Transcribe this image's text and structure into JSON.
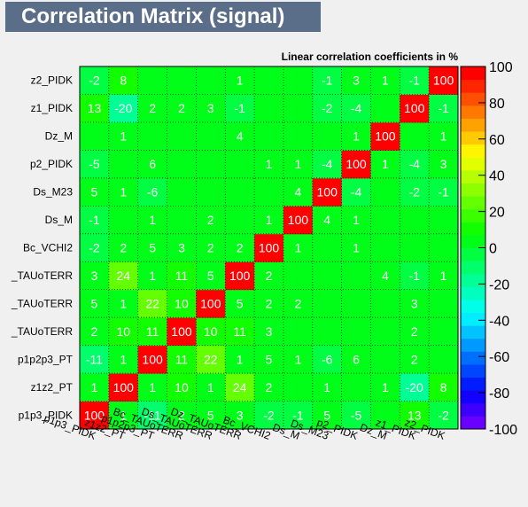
{
  "title": "Correlation Matrix (signal)",
  "chart_data": {
    "type": "heatmap",
    "title": "Correlation Matrix (signal)",
    "subtitle": "Linear correlation coefficients in %",
    "variables": [
      "p1p3_PIDK",
      "z1z2_PT",
      "p1p2p3_PT",
      "Bc_TAUoTERR",
      "Ds_TAUoTERR",
      "Dz_TAUoTERR",
      "Bc_VCHI2",
      "Ds_M",
      "Ds_M23",
      "p2_PIDK",
      "Dz_M",
      "z1_PIDK",
      "z2_PIDK"
    ],
    "y_tick_labels": [
      "p1p3_PIDK",
      "z1z2_PT",
      "p1p2p3_PT",
      "_TAUoTERR",
      "_TAUoTERR",
      "_TAUoTERR",
      "Bc_VCHI2",
      "Ds_M",
      "Ds_M23",
      "p2_PIDK",
      "Dz_M",
      "z1_PIDK",
      "z2_PIDK"
    ],
    "x_tick_labels": [
      "p1p3_PIDK",
      "z1z2_PT",
      "p1p2p3_PT",
      "Bc_TAUoTERR",
      "Ds_TAUoTERR",
      "Dz_TAUoTERR",
      "Bc_VCHI2",
      "Ds_M",
      "Ds_M23",
      "p2_PIDK",
      "Dz_M",
      "z1_PIDK",
      "z2_PIDK"
    ],
    "values": [
      [
        100,
        1,
        -11,
        2,
        5,
        3,
        -2,
        -1,
        5,
        -5,
        0,
        13,
        -2
      ],
      [
        1,
        100,
        1,
        10,
        1,
        24,
        2,
        0,
        1,
        0,
        1,
        -20,
        8
      ],
      [
        -11,
        1,
        100,
        11,
        22,
        1,
        5,
        1,
        -6,
        6,
        0,
        2,
        0
      ],
      [
        2,
        10,
        11,
        100,
        10,
        11,
        3,
        0,
        0,
        0,
        0,
        2,
        0
      ],
      [
        5,
        1,
        22,
        10,
        100,
        5,
        2,
        2,
        0,
        0,
        0,
        3,
        0
      ],
      [
        3,
        24,
        1,
        11,
        5,
        100,
        2,
        0,
        0,
        0,
        4,
        -1,
        1
      ],
      [
        -2,
        2,
        5,
        3,
        2,
        2,
        100,
        1,
        0,
        1,
        0,
        0,
        0
      ],
      [
        -1,
        0,
        1,
        0,
        2,
        0,
        1,
        100,
        4,
        1,
        0,
        0,
        0
      ],
      [
        5,
        1,
        -6,
        0,
        0,
        0,
        0,
        4,
        100,
        -4,
        0,
        -2,
        -1
      ],
      [
        -5,
        0,
        6,
        0,
        0,
        0,
        1,
        1,
        -4,
        100,
        1,
        -4,
        3
      ],
      [
        0,
        1,
        0,
        0,
        0,
        4,
        0,
        0,
        0,
        1,
        100,
        0,
        1
      ],
      [
        13,
        -20,
        2,
        2,
        3,
        -1,
        0,
        0,
        -2,
        -4,
        0,
        100,
        -1
      ],
      [
        -2,
        8,
        0,
        0,
        0,
        1,
        0,
        0,
        -1,
        3,
        1,
        -1,
        100
      ]
    ],
    "zlim": [
      -100,
      100
    ],
    "z_ticks": [
      -100,
      -80,
      -60,
      -40,
      -20,
      0,
      20,
      40,
      60,
      80,
      100
    ],
    "grid": true,
    "palette": [
      "#6a00ff",
      "#3d00ff",
      "#1400ff",
      "#001cff",
      "#0046ff",
      "#006fff",
      "#0099ff",
      "#00c3ff",
      "#00ecff",
      "#00ffe8",
      "#00ffbf",
      "#00ff95",
      "#00ff6b",
      "#00ff42",
      "#00ff18",
      "#11ff00",
      "#3bff00",
      "#64ff00",
      "#8eff00",
      "#b7ff00",
      "#e1ff00",
      "#fff500",
      "#ffcb00",
      "#ffa200",
      "#ff7800",
      "#ff4f00",
      "#ff2500",
      "#ff0000"
    ]
  }
}
